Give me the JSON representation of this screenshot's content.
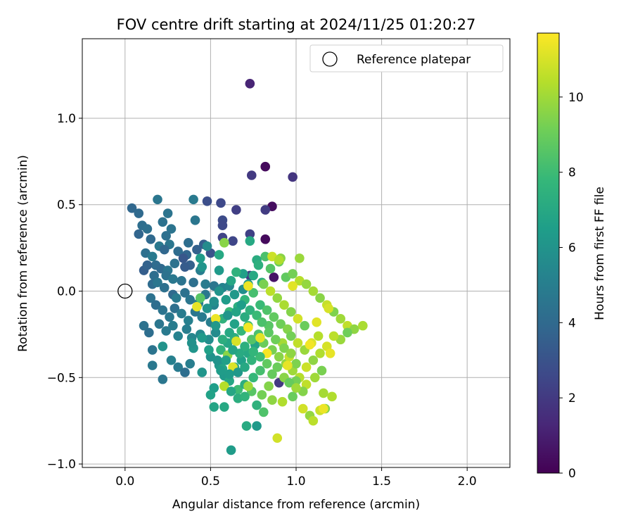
{
  "chart_data": {
    "type": "scatter",
    "title": "FOV centre drift starting at 2024/11/25 01:20:27",
    "xlabel": "Angular distance from reference (arcmin)",
    "ylabel": "Rotation from reference (arcmin)",
    "xlim": [
      -0.25,
      2.25
    ],
    "ylim": [
      -1.02,
      1.46
    ],
    "xticks": [
      "0.0",
      "0.5",
      "1.0",
      "1.5",
      "2.0"
    ],
    "yticks": [
      "−1.0",
      "−0.5",
      "0.0",
      "0.5",
      "1.0"
    ],
    "grid": true,
    "legend": {
      "position": "top-right",
      "entries": [
        {
          "label": "Reference platepar",
          "marker": "open-circle"
        }
      ]
    },
    "reference_point": {
      "x": 0.0,
      "y": 0.0
    },
    "colorbar": {
      "label": "Hours from first FF file",
      "colormap": "viridis",
      "range": [
        0,
        11.7
      ],
      "ticks": [
        "0",
        "2",
        "4",
        "6",
        "8",
        "10"
      ]
    },
    "colormap_stops": [
      "#440154",
      "#482878",
      "#3e4989",
      "#31688e",
      "#26828e",
      "#1f9e89",
      "#35b779",
      "#6ece58",
      "#b5de2b",
      "#fde725"
    ],
    "points": [
      [
        0.73,
        1.2,
        1.2
      ],
      [
        0.82,
        0.72,
        0.3
      ],
      [
        0.74,
        0.67,
        2.0
      ],
      [
        0.98,
        0.66,
        1.8
      ],
      [
        0.86,
        0.49,
        0.4
      ],
      [
        0.82,
        0.47,
        2.1
      ],
      [
        0.65,
        0.47,
        2.2
      ],
      [
        0.82,
        0.3,
        0.3
      ],
      [
        0.73,
        0.33,
        2.3
      ],
      [
        0.57,
        0.31,
        2.4
      ],
      [
        0.56,
        0.51,
        2.6
      ],
      [
        0.48,
        0.52,
        2.8
      ],
      [
        0.57,
        0.41,
        2.7
      ],
      [
        0.57,
        0.38,
        2.6
      ],
      [
        0.63,
        0.29,
        2.5
      ],
      [
        0.73,
        0.09,
        2.2
      ],
      [
        0.87,
        0.08,
        0.6
      ],
      [
        0.9,
        -0.53,
        2.0
      ],
      [
        0.04,
        0.48,
        3.9
      ],
      [
        0.08,
        0.45,
        4.0
      ],
      [
        0.19,
        0.53,
        4.6
      ],
      [
        0.4,
        0.53,
        4.8
      ],
      [
        0.25,
        0.45,
        4.5
      ],
      [
        0.1,
        0.38,
        4.2
      ],
      [
        0.13,
        0.36,
        4.3
      ],
      [
        0.08,
        0.33,
        3.8
      ],
      [
        0.15,
        0.3,
        4.0
      ],
      [
        0.22,
        0.4,
        4.4
      ],
      [
        0.27,
        0.36,
        4.5
      ],
      [
        0.24,
        0.32,
        4.3
      ],
      [
        0.26,
        0.27,
        4.6
      ],
      [
        0.2,
        0.26,
        4.7
      ],
      [
        0.23,
        0.24,
        3.9
      ],
      [
        0.31,
        0.23,
        4.1
      ],
      [
        0.36,
        0.21,
        3.8
      ],
      [
        0.37,
        0.28,
        4.2
      ],
      [
        0.41,
        0.41,
        4.6
      ],
      [
        0.46,
        0.27,
        3.5
      ],
      [
        0.42,
        0.24,
        3.6
      ],
      [
        0.12,
        0.22,
        4.3
      ],
      [
        0.16,
        0.2,
        4.8
      ],
      [
        0.18,
        0.15,
        4.1
      ],
      [
        0.21,
        0.13,
        4.0
      ],
      [
        0.25,
        0.12,
        4.6
      ],
      [
        0.29,
        0.16,
        4.4
      ],
      [
        0.34,
        0.19,
        3.2
      ],
      [
        0.38,
        0.15,
        3.6
      ],
      [
        0.35,
        0.14,
        3.4
      ],
      [
        0.44,
        0.12,
        5.0
      ],
      [
        0.5,
        0.22,
        3.0
      ],
      [
        0.11,
        0.12,
        3.5
      ],
      [
        0.13,
        0.15,
        3.7
      ],
      [
        0.17,
        0.09,
        4.2
      ],
      [
        0.24,
        0.09,
        4.4
      ],
      [
        0.28,
        0.07,
        4.7
      ],
      [
        0.33,
        0.06,
        4.5
      ],
      [
        0.4,
        0.05,
        4.3
      ],
      [
        0.47,
        0.04,
        4.9
      ],
      [
        0.52,
        0.03,
        4.6
      ],
      [
        0.57,
        0.02,
        5.2
      ],
      [
        0.61,
        0.03,
        5.5
      ],
      [
        0.69,
        0.01,
        5.8
      ],
      [
        0.72,
        0.04,
        6.2
      ],
      [
        0.75,
        0.09,
        7.0
      ],
      [
        0.8,
        0.05,
        7.3
      ],
      [
        0.16,
        0.04,
        4.1
      ],
      [
        0.19,
        0.05,
        4.6
      ],
      [
        0.23,
        0.02,
        4.3
      ],
      [
        0.28,
        -0.02,
        4.0
      ],
      [
        0.3,
        -0.04,
        4.8
      ],
      [
        0.35,
        -0.01,
        4.4
      ],
      [
        0.38,
        -0.05,
        4.6
      ],
      [
        0.43,
        -0.07,
        5.0
      ],
      [
        0.47,
        -0.02,
        4.7
      ],
      [
        0.52,
        -0.08,
        5.3
      ],
      [
        0.15,
        -0.04,
        4.4
      ],
      [
        0.18,
        -0.08,
        4.2
      ],
      [
        0.22,
        -0.11,
        4.5
      ],
      [
        0.26,
        -0.15,
        4.7
      ],
      [
        0.29,
        -0.1,
        4.3
      ],
      [
        0.33,
        -0.13,
        4.9
      ],
      [
        0.37,
        -0.17,
        5.1
      ],
      [
        0.41,
        -0.12,
        4.6
      ],
      [
        0.45,
        -0.15,
        4.8
      ],
      [
        0.5,
        -0.18,
        5.0
      ],
      [
        0.11,
        -0.2,
        4.4
      ],
      [
        0.14,
        -0.24,
        4.2
      ],
      [
        0.2,
        -0.19,
        4.6
      ],
      [
        0.24,
        -0.23,
        4.8
      ],
      [
        0.28,
        -0.2,
        4.9
      ],
      [
        0.31,
        -0.26,
        5.2
      ],
      [
        0.36,
        -0.22,
        5.0
      ],
      [
        0.39,
        -0.27,
        5.4
      ],
      [
        0.44,
        -0.25,
        5.5
      ],
      [
        0.49,
        -0.28,
        5.7
      ],
      [
        0.53,
        -0.24,
        5.6
      ],
      [
        0.16,
        -0.34,
        4.5
      ],
      [
        0.22,
        -0.32,
        6.0
      ],
      [
        0.27,
        -0.4,
        5.1
      ],
      [
        0.31,
        -0.44,
        4.8
      ],
      [
        0.35,
        -0.47,
        4.2
      ],
      [
        0.38,
        -0.42,
        5.0
      ],
      [
        0.45,
        -0.47,
        6.1
      ],
      [
        0.16,
        -0.43,
        4.7
      ],
      [
        0.22,
        -0.51,
        4.6
      ],
      [
        0.5,
        -0.38,
        5.9
      ],
      [
        0.55,
        -0.43,
        6.2
      ],
      [
        0.58,
        -0.49,
        6.3
      ],
      [
        0.52,
        -0.56,
        6.5
      ],
      [
        0.5,
        -0.6,
        6.7
      ],
      [
        0.52,
        -0.67,
        6.8
      ],
      [
        0.58,
        -0.67,
        7.0
      ],
      [
        0.62,
        -0.92,
        6.4
      ],
      [
        0.71,
        -0.78,
        7.1
      ],
      [
        0.77,
        -0.78,
        6.3
      ],
      [
        0.81,
        -0.7,
        8.4
      ],
      [
        0.77,
        -0.66,
        7.5
      ],
      [
        0.66,
        -0.57,
        8.0
      ],
      [
        0.61,
        -0.52,
        6.9
      ],
      [
        0.64,
        -0.44,
        7.2
      ],
      [
        0.68,
        -0.4,
        6.6
      ],
      [
        0.72,
        -0.36,
        7.0
      ],
      [
        0.76,
        -0.31,
        6.8
      ],
      [
        0.56,
        -0.34,
        7.6
      ],
      [
        0.6,
        -0.3,
        6.9
      ],
      [
        0.64,
        -0.27,
        7.3
      ],
      [
        0.68,
        -0.23,
        7.8
      ],
      [
        0.72,
        -0.2,
        8.1
      ],
      [
        0.57,
        -0.16,
        7.5
      ],
      [
        0.61,
        -0.12,
        7.9
      ],
      [
        0.66,
        -0.09,
        7.4
      ],
      [
        0.7,
        -0.05,
        7.7
      ],
      [
        0.75,
        -0.01,
        8.2
      ],
      [
        0.79,
        -0.08,
        7.9
      ],
      [
        0.83,
        -0.11,
        8.4
      ],
      [
        0.87,
        -0.15,
        8.8
      ],
      [
        0.91,
        -0.19,
        9.1
      ],
      [
        0.95,
        -0.22,
        9.5
      ],
      [
        0.84,
        -0.2,
        8.6
      ],
      [
        0.78,
        -0.25,
        8.3
      ],
      [
        0.74,
        -0.28,
        8.5
      ],
      [
        0.81,
        -0.3,
        9.0
      ],
      [
        0.86,
        -0.34,
        9.3
      ],
      [
        0.9,
        -0.38,
        9.6
      ],
      [
        0.94,
        -0.42,
        9.8
      ],
      [
        0.98,
        -0.46,
        10.0
      ],
      [
        1.02,
        -0.5,
        10.4
      ],
      [
        1.06,
        -0.54,
        10.6
      ],
      [
        0.83,
        -0.42,
        8.8
      ],
      [
        0.79,
        -0.46,
        8.2
      ],
      [
        0.75,
        -0.5,
        7.8
      ],
      [
        0.7,
        -0.54,
        7.3
      ],
      [
        0.74,
        -0.58,
        8.6
      ],
      [
        0.8,
        -0.6,
        9.2
      ],
      [
        0.86,
        -0.63,
        9.7
      ],
      [
        0.92,
        -0.64,
        10.3
      ],
      [
        0.98,
        -0.61,
        9.0
      ],
      [
        1.04,
        -0.68,
        10.9
      ],
      [
        1.08,
        -0.72,
        9.8
      ],
      [
        1.1,
        -0.75,
        10.5
      ],
      [
        1.14,
        -0.69,
        10.8
      ],
      [
        1.17,
        -0.68,
        9.5
      ],
      [
        1.16,
        -0.59,
        10.1
      ],
      [
        1.21,
        -0.61,
        10.3
      ],
      [
        0.89,
        -0.85,
        10.9
      ],
      [
        0.94,
        0.08,
        8.8
      ],
      [
        0.98,
        0.1,
        9.2
      ],
      [
        1.02,
        0.06,
        10.4
      ],
      [
        1.06,
        0.04,
        9.8
      ],
      [
        1.1,
        0.0,
        10.1
      ],
      [
        1.14,
        -0.04,
        9.6
      ],
      [
        1.18,
        -0.08,
        10.7
      ],
      [
        1.22,
        -0.12,
        9.4
      ],
      [
        1.26,
        -0.16,
        10.0
      ],
      [
        1.3,
        -0.2,
        10.6
      ],
      [
        1.34,
        -0.22,
        9.7
      ],
      [
        1.39,
        -0.2,
        10.2
      ],
      [
        1.3,
        -0.24,
        9.1
      ],
      [
        1.26,
        -0.28,
        9.9
      ],
      [
        1.22,
        -0.26,
        10.5
      ],
      [
        1.18,
        -0.32,
        11.0
      ],
      [
        1.14,
        -0.36,
        10.3
      ],
      [
        1.1,
        -0.4,
        9.7
      ],
      [
        1.06,
        -0.44,
        10.8
      ],
      [
        1.15,
        -0.46,
        9.3
      ],
      [
        1.11,
        -0.5,
        10.0
      ],
      [
        1.0,
        -0.42,
        9.4
      ],
      [
        0.96,
        -0.38,
        10.7
      ],
      [
        0.92,
        -0.3,
        10.1
      ],
      [
        0.97,
        -0.26,
        9.2
      ],
      [
        1.01,
        -0.3,
        10.6
      ],
      [
        1.05,
        -0.34,
        9.9
      ],
      [
        1.09,
        -0.3,
        11.1
      ],
      [
        1.13,
        -0.26,
        10.4
      ],
      [
        1.05,
        -0.2,
        9.0
      ],
      [
        1.01,
        -0.16,
        10.9
      ],
      [
        0.97,
        -0.12,
        9.5
      ],
      [
        0.93,
        -0.08,
        10.2
      ],
      [
        0.89,
        -0.04,
        9.8
      ],
      [
        0.85,
        0.0,
        10.5
      ],
      [
        0.81,
        0.04,
        9.3
      ],
      [
        0.85,
        0.13,
        8.5
      ],
      [
        0.9,
        0.17,
        9.0
      ],
      [
        0.82,
        0.2,
        8.3
      ],
      [
        0.86,
        0.2,
        10.8
      ],
      [
        0.91,
        0.19,
        9.6
      ],
      [
        1.02,
        0.19,
        9.9
      ],
      [
        0.77,
        0.18,
        7.2
      ],
      [
        0.72,
        0.03,
        11.4
      ],
      [
        0.98,
        0.03,
        11.2
      ],
      [
        0.42,
        -0.09,
        11.3
      ],
      [
        0.53,
        -0.16,
        11.4
      ],
      [
        0.72,
        -0.21,
        11.5
      ],
      [
        0.79,
        -0.27,
        11.2
      ],
      [
        0.83,
        -0.36,
        11.6
      ],
      [
        0.65,
        -0.29,
        11.0
      ],
      [
        0.6,
        -0.37,
        9.6
      ],
      [
        0.63,
        -0.44,
        11.1
      ],
      [
        0.58,
        -0.55,
        10.4
      ],
      [
        0.72,
        -0.55,
        10.0
      ],
      [
        0.84,
        -0.55,
        9.5
      ],
      [
        0.95,
        -0.43,
        11.3
      ],
      [
        1.08,
        -0.31,
        11.5
      ],
      [
        1.12,
        -0.18,
        11.2
      ],
      [
        1.19,
        -0.1,
        11.0
      ],
      [
        1.2,
        -0.36,
        11.3
      ],
      [
        1.16,
        -0.68,
        11.4
      ],
      [
        0.9,
        0.18,
        10.3
      ],
      [
        0.55,
        0.21,
        7.0
      ],
      [
        0.58,
        0.28,
        9.6
      ],
      [
        0.73,
        0.29,
        7.0
      ],
      [
        0.78,
        0.15,
        7.4
      ],
      [
        0.69,
        0.1,
        6.6
      ],
      [
        0.65,
        0.11,
        7.5
      ],
      [
        0.62,
        0.06,
        6.9
      ],
      [
        0.55,
        0.12,
        6.3
      ],
      [
        0.45,
        0.14,
        6.1
      ],
      [
        0.44,
        0.19,
        6.4
      ],
      [
        0.48,
        0.26,
        5.6
      ],
      [
        0.55,
        0.0,
        6.0
      ],
      [
        0.59,
        -0.05,
        6.4
      ],
      [
        0.64,
        -0.02,
        6.2
      ],
      [
        0.68,
        -0.08,
        6.5
      ],
      [
        0.52,
        -0.06,
        5.8
      ],
      [
        0.48,
        -0.1,
        6.0
      ],
      [
        0.44,
        -0.04,
        8.6
      ],
      [
        0.45,
        -0.27,
        6.3
      ],
      [
        0.49,
        -0.34,
        6.6
      ],
      [
        0.54,
        -0.4,
        6.0
      ],
      [
        0.57,
        -0.45,
        6.8
      ],
      [
        0.61,
        -0.48,
        6.4
      ],
      [
        0.66,
        -0.47,
        6.2
      ],
      [
        0.7,
        -0.44,
        7.0
      ],
      [
        0.74,
        -0.4,
        7.6
      ],
      [
        0.4,
        -0.33,
        6.1
      ],
      [
        0.39,
        -0.3,
        5.9
      ],
      [
        0.53,
        -0.2,
        6.2
      ],
      [
        0.57,
        -0.28,
        7.3
      ],
      [
        0.61,
        -0.24,
        7.0
      ],
      [
        0.64,
        -0.19,
        6.7
      ],
      [
        0.6,
        -0.14,
        6.1
      ],
      [
        0.65,
        -0.12,
        6.8
      ],
      [
        0.7,
        -0.15,
        7.2
      ],
      [
        0.73,
        -0.11,
        7.5
      ],
      [
        0.77,
        -0.14,
        7.9
      ],
      [
        0.8,
        -0.18,
        8.3
      ],
      [
        0.84,
        -0.24,
        8.7
      ],
      [
        0.88,
        -0.28,
        9.1
      ],
      [
        0.93,
        -0.33,
        9.4
      ],
      [
        0.97,
        -0.36,
        9.7
      ],
      [
        1.0,
        -0.52,
        9.2
      ],
      [
        1.04,
        -0.58,
        9.5
      ],
      [
        0.79,
        -0.38,
        8.0
      ],
      [
        0.75,
        -0.35,
        7.7
      ],
      [
        0.7,
        -0.32,
        7.4
      ],
      [
        0.67,
        -0.36,
        7.1
      ],
      [
        0.63,
        -0.34,
        6.8
      ],
      [
        0.59,
        -0.4,
        6.6
      ],
      [
        0.56,
        -0.46,
        6.4
      ],
      [
        0.62,
        -0.58,
        6.9
      ],
      [
        0.66,
        -0.62,
        7.3
      ],
      [
        0.7,
        -0.61,
        7.6
      ],
      [
        0.86,
        -0.48,
        8.9
      ],
      [
        0.89,
        -0.44,
        9.0
      ],
      [
        0.93,
        -0.5,
        9.6
      ],
      [
        0.96,
        -0.53,
        8.9
      ],
      [
        1.0,
        -0.56,
        10.0
      ]
    ]
  }
}
